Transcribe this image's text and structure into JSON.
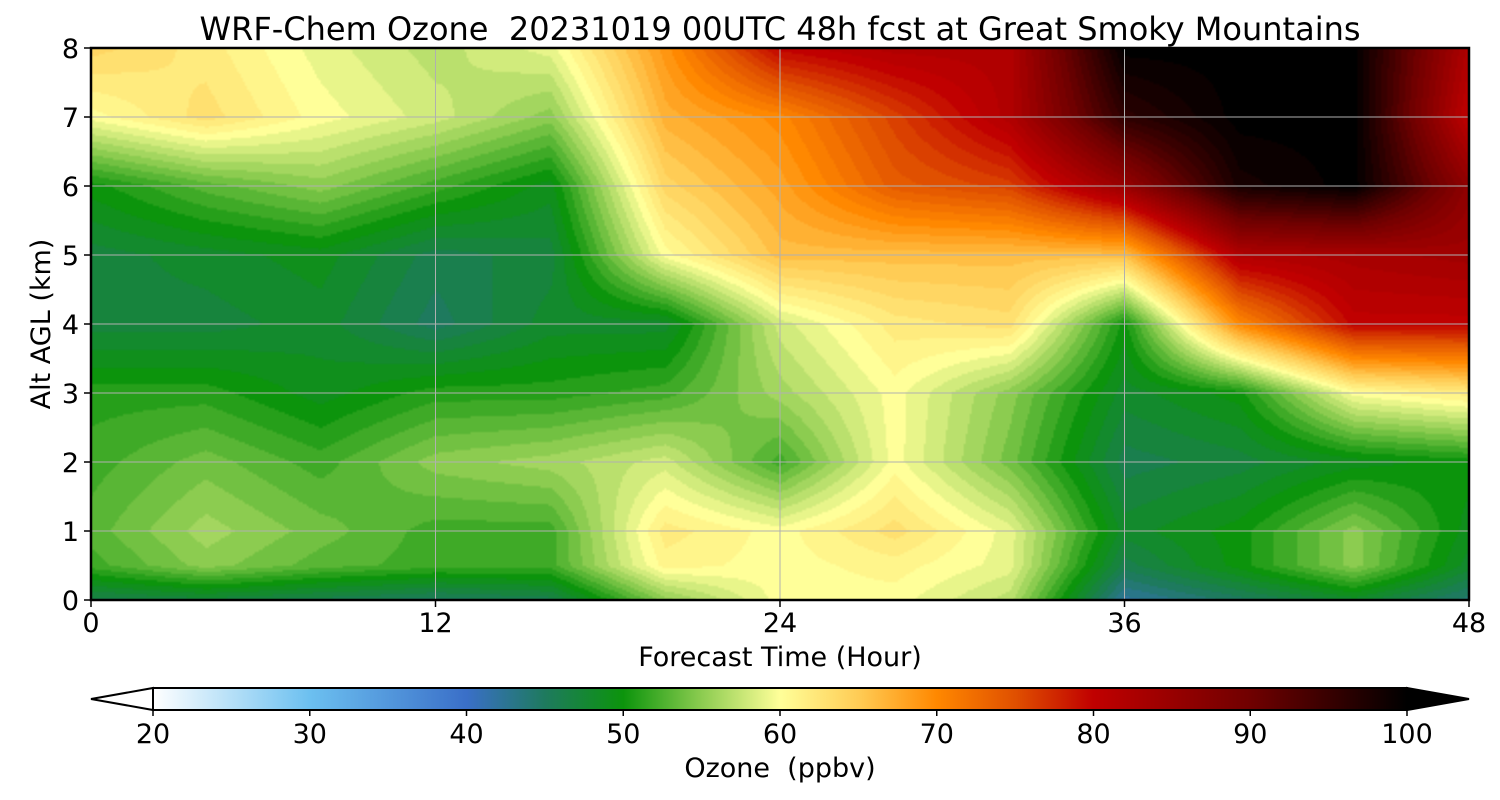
{
  "chart_data": {
    "type": "heatmap",
    "title": "WRF-Chem Ozone  20231019 00UTC 48h fcst at Great Smoky Mountains",
    "xlabel": "Forecast Time (Hour)",
    "ylabel": "Alt AGL (km)",
    "xlim": [
      0,
      48
    ],
    "ylim": [
      0,
      8
    ],
    "x_ticks": [
      0,
      12,
      24,
      36,
      48
    ],
    "y_ticks": [
      0,
      1,
      2,
      3,
      4,
      5,
      6,
      7,
      8
    ],
    "grid": true,
    "x": [
      0,
      4,
      8,
      12,
      16,
      20,
      24,
      28,
      32,
      36,
      40,
      44,
      48
    ],
    "y": [
      0,
      0.5,
      1,
      2,
      3,
      4,
      5,
      6,
      7,
      8
    ],
    "z": [
      [
        46,
        47,
        46,
        45,
        46,
        55,
        60,
        60,
        57,
        42,
        45,
        48,
        44
      ],
      [
        52,
        55,
        53,
        52,
        52,
        61,
        60,
        61,
        59,
        46,
        50,
        55,
        48
      ],
      [
        53,
        56,
        54,
        52,
        52,
        62,
        60,
        63,
        59,
        48,
        50,
        55,
        49
      ],
      [
        52,
        54,
        52,
        55,
        56,
        58,
        52,
        60,
        54,
        46,
        47,
        49,
        50
      ],
      [
        51,
        51,
        49,
        51,
        51,
        52,
        56,
        60,
        55,
        48,
        50,
        60,
        62
      ],
      [
        47,
        47,
        48,
        45,
        48,
        48,
        58,
        62,
        63,
        50,
        70,
        80,
        80
      ],
      [
        47,
        48,
        49,
        46,
        47,
        60,
        66,
        66,
        66,
        66,
        82,
        83,
        84
      ],
      [
        50,
        53,
        55,
        52,
        49,
        64,
        68,
        74,
        76,
        85,
        98,
        100,
        86
      ],
      [
        60,
        63,
        60,
        58,
        55,
        67,
        70,
        76,
        82,
        96,
        100,
        100,
        80
      ],
      [
        64,
        62,
        59,
        57,
        59,
        69,
        80,
        82,
        82,
        100,
        100,
        100,
        82
      ]
    ],
    "colorbar": {
      "label": "Ozone  (ppbv)",
      "min": 20,
      "max": 100,
      "ticks": [
        20,
        30,
        40,
        50,
        60,
        70,
        80,
        90,
        100
      ],
      "extend": "both",
      "stops": [
        {
          "v": 20,
          "c": "#ffffff"
        },
        {
          "v": 30,
          "c": "#6cc0f0"
        },
        {
          "v": 40,
          "c": "#3a6fc8"
        },
        {
          "v": 45,
          "c": "#1e7a5e"
        },
        {
          "v": 50,
          "c": "#0c940c"
        },
        {
          "v": 55,
          "c": "#8ccc50"
        },
        {
          "v": 60,
          "c": "#ffff99"
        },
        {
          "v": 65,
          "c": "#ffcc55"
        },
        {
          "v": 70,
          "c": "#ff8800"
        },
        {
          "v": 75,
          "c": "#e05000"
        },
        {
          "v": 80,
          "c": "#c00000"
        },
        {
          "v": 90,
          "c": "#700000"
        },
        {
          "v": 100,
          "c": "#000000"
        }
      ]
    }
  }
}
